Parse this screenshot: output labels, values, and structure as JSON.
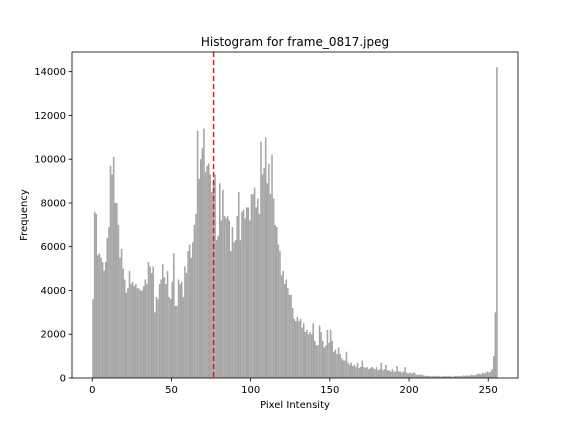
{
  "chart_data": {
    "type": "histogram",
    "title": "Histogram for frame_0817.jpeg",
    "x_label": "Pixel Intensity",
    "y_label": "Frequency",
    "color": "#a6a6a6",
    "bins": [
      0,
      1,
      2,
      3,
      4,
      5,
      6,
      7,
      8,
      9,
      10,
      11,
      12,
      13,
      14,
      15,
      16,
      17,
      18,
      19,
      20,
      21,
      22,
      23,
      24,
      25,
      26,
      27,
      28,
      29,
      30,
      31,
      32,
      33,
      34,
      35,
      36,
      37,
      38,
      39,
      40,
      41,
      42,
      43,
      44,
      45,
      46,
      47,
      48,
      49,
      50,
      51,
      52,
      53,
      54,
      55,
      56,
      57,
      58,
      59,
      60,
      61,
      62,
      63,
      64,
      65,
      66,
      67,
      68,
      69,
      70,
      71,
      72,
      73,
      74,
      75,
      76,
      77,
      78,
      79,
      80,
      81,
      82,
      83,
      84,
      85,
      86,
      87,
      88,
      89,
      90,
      91,
      92,
      93,
      94,
      95,
      96,
      97,
      98,
      99,
      100,
      101,
      102,
      103,
      104,
      105,
      106,
      107,
      108,
      109,
      110,
      111,
      112,
      113,
      114,
      115,
      116,
      117,
      118,
      119,
      120,
      121,
      122,
      123,
      124,
      125,
      126,
      127,
      128,
      129,
      130,
      131,
      132,
      133,
      134,
      135,
      136,
      137,
      138,
      139,
      140,
      141,
      142,
      143,
      144,
      145,
      146,
      147,
      148,
      149,
      150,
      151,
      152,
      153,
      154,
      155,
      156,
      157,
      158,
      159,
      160,
      161,
      162,
      163,
      164,
      165,
      166,
      167,
      168,
      169,
      170,
      171,
      172,
      173,
      174,
      175,
      176,
      177,
      178,
      179,
      180,
      181,
      182,
      183,
      184,
      185,
      186,
      187,
      188,
      189,
      190,
      191,
      192,
      193,
      194,
      195,
      196,
      197,
      198,
      199,
      200,
      201,
      202,
      203,
      204,
      205,
      206,
      207,
      208,
      209,
      210,
      211,
      212,
      213,
      214,
      215,
      216,
      217,
      218,
      219,
      220,
      221,
      222,
      223,
      224,
      225,
      226,
      227,
      228,
      229,
      230,
      231,
      232,
      233,
      234,
      235,
      236,
      237,
      238,
      239,
      240,
      241,
      242,
      243,
      244,
      245,
      246,
      247,
      248,
      249,
      250,
      251,
      252,
      253,
      254,
      255,
      256
    ],
    "values": [
      3600,
      7600,
      7500,
      5600,
      5700,
      5500,
      5300,
      4900,
      5300,
      6400,
      6900,
      9700,
      9300,
      10100,
      8000,
      8000,
      7000,
      5500,
      5900,
      5000,
      4500,
      3900,
      4100,
      4900,
      4300,
      4400,
      4200,
      4300,
      4100,
      4100,
      4000,
      4000,
      4200,
      4500,
      4300,
      5300,
      5100,
      4800,
      5100,
      3000,
      3700,
      3600,
      4300,
      4500,
      5200,
      4600,
      4300,
      4900,
      3700,
      3600,
      4400,
      5700,
      3300,
      3300,
      4500,
      4300,
      4400,
      3700,
      5100,
      4800,
      5800,
      6100,
      5500,
      6200,
      7000,
      7500,
      11300,
      9100,
      10000,
      10500,
      11400,
      9400,
      9700,
      9800,
      9300,
      8500,
      9000,
      9300,
      6300,
      6500,
      8900,
      7200,
      8600,
      7400,
      7300,
      7400,
      7200,
      5800,
      6900,
      6200,
      6300,
      7400,
      8500,
      6300,
      7600,
      7700,
      7300,
      7800,
      7800,
      7200,
      8400,
      8400,
      8700,
      7800,
      8200,
      7500,
      10800,
      9300,
      9600,
      11000,
      8900,
      9800,
      8400,
      10200,
      8200,
      7000,
      6900,
      6100,
      5800,
      4700,
      4900,
      4300,
      4500,
      4100,
      3800,
      3800,
      3200,
      2700,
      2600,
      2800,
      2600,
      2700,
      2300,
      2500,
      2100,
      2200,
      2000,
      2100,
      2000,
      2500,
      1700,
      1500,
      1500,
      2400,
      2100,
      1700,
      1400,
      1500,
      2200,
      1600,
      2200,
      1700,
      1200,
      1300,
      1100,
      1400,
      1100,
      900,
      800,
      800,
      1200,
      700,
      600,
      700,
      550,
      600,
      500,
      700,
      450,
      500,
      800,
      500,
      450,
      500,
      400,
      450,
      500,
      450,
      400,
      500,
      350,
      400,
      700,
      350,
      400,
      600,
      350,
      350,
      300,
      400,
      300,
      300,
      550,
      300,
      300,
      250,
      300,
      500,
      250,
      200,
      250,
      200,
      250,
      250,
      150,
      150,
      150,
      150,
      150,
      100,
      100,
      100,
      100,
      80,
      80,
      100,
      80,
      80,
      100,
      80,
      60,
      80,
      100,
      80,
      80,
      100,
      80,
      60,
      80,
      100,
      80,
      100,
      80,
      100,
      120,
      100,
      120,
      100,
      120,
      150,
      130,
      120,
      150,
      200,
      200,
      180,
      250,
      200,
      250,
      300,
      250,
      300,
      400,
      1000,
      3000,
      14200
    ],
    "vline": {
      "value": 76.6,
      "color": "#e31a1c"
    },
    "xlim": [
      -12.8,
      268.8
    ],
    "xticks": [
      0,
      50,
      100,
      150,
      200,
      250
    ],
    "ylim": [
      0,
      14900
    ],
    "yticks": [
      0,
      2000,
      4000,
      6000,
      8000,
      10000,
      12000,
      14000
    ]
  }
}
